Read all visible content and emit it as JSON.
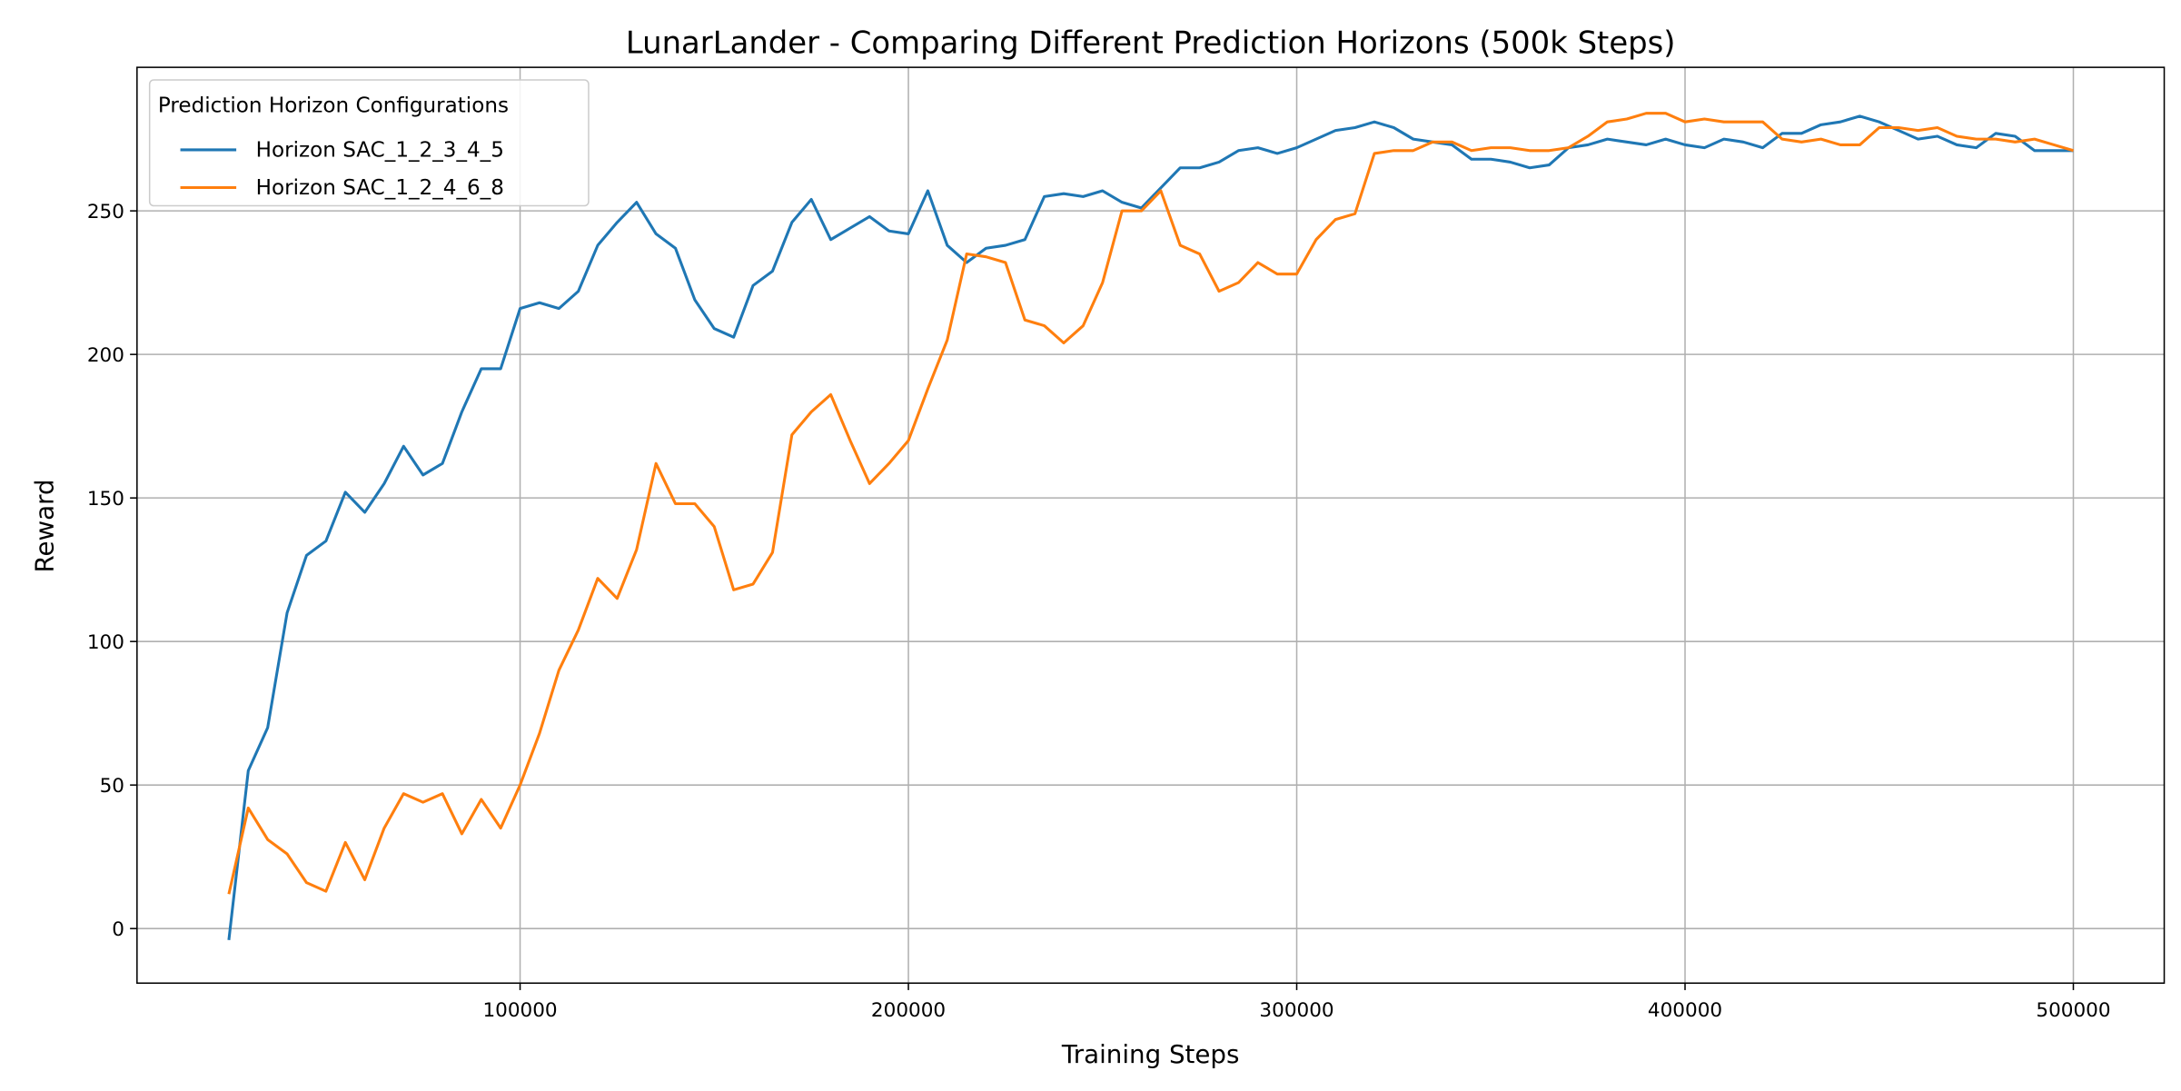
{
  "chart_data": {
    "type": "line",
    "title": "LunarLander - Comparing Different Prediction Horizons (500k Steps)",
    "x_label": "Training Steps",
    "y_label": "Reward",
    "legend_title": "Prediction Horizon Configurations",
    "legend_loc": "upper left",
    "grid": true,
    "xlim": [
      1350,
      523400
    ],
    "ylim": [
      -19,
      300
    ],
    "xticks": [
      100000,
      200000,
      300000,
      400000,
      500000
    ],
    "yticks": [
      0,
      50,
      100,
      150,
      200,
      250
    ],
    "x": [
      25000,
      30000,
      35000,
      40000,
      45000,
      50000,
      55000,
      60000,
      65000,
      70000,
      75000,
      80000,
      85000,
      90000,
      95000,
      100000,
      105000,
      110000,
      115000,
      120000,
      125000,
      130000,
      135000,
      140000,
      145000,
      150000,
      155000,
      160000,
      165000,
      170000,
      175000,
      180000,
      185000,
      190000,
      195000,
      200000,
      205000,
      210000,
      215000,
      220000,
      225000,
      230000,
      235000,
      240000,
      245000,
      250000,
      255000,
      260000,
      265000,
      270000,
      275000,
      280000,
      285000,
      290000,
      295000,
      300000,
      305000,
      310000,
      315000,
      320000,
      325000,
      330000,
      335000,
      340000,
      345000,
      350000,
      355000,
      360000,
      365000,
      370000,
      375000,
      380000,
      385000,
      390000,
      395000,
      400000,
      405000,
      410000,
      415000,
      420000,
      425000,
      430000,
      435000,
      440000,
      445000,
      450000,
      455000,
      460000,
      465000,
      470000,
      475000,
      480000,
      485000,
      490000,
      495000,
      500000
    ],
    "series": [
      {
        "name": "Horizon SAC_1_2_3_4_5",
        "color": "#1f77b4",
        "values": [
          -4,
          55,
          70,
          110,
          130,
          135,
          152,
          145,
          155,
          168,
          158,
          162,
          180,
          195,
          195,
          216,
          218,
          216,
          222,
          238,
          246,
          253,
          242,
          237,
          219,
          209,
          206,
          224,
          229,
          246,
          254,
          240,
          244,
          248,
          243,
          242,
          257,
          238,
          232,
          237,
          238,
          240,
          255,
          256,
          255,
          257,
          253,
          251,
          258,
          265,
          265,
          267,
          271,
          272,
          270,
          272,
          275,
          278,
          279,
          281,
          279,
          275,
          274,
          273,
          268,
          268,
          267,
          265,
          266,
          272,
          273,
          275,
          274,
          273,
          275,
          273,
          272,
          275,
          274,
          272,
          277,
          277,
          280,
          281,
          283,
          281,
          278,
          275,
          276,
          273,
          272,
          277,
          276,
          271,
          271,
          271
        ]
      },
      {
        "name": "Horizon SAC_1_2_4_6_8",
        "color": "#ff7f0e",
        "values": [
          12,
          42,
          31,
          26,
          16,
          13,
          30,
          17,
          35,
          47,
          44,
          47,
          33,
          45,
          35,
          50,
          68,
          90,
          104,
          122,
          115,
          132,
          162,
          148,
          148,
          140,
          118,
          120,
          131,
          172,
          180,
          186,
          170,
          155,
          162,
          170,
          188,
          205,
          235,
          234,
          232,
          212,
          210,
          204,
          210,
          225,
          250,
          250,
          257,
          238,
          235,
          222,
          225,
          232,
          228,
          228,
          240,
          247,
          249,
          270,
          271,
          271,
          274,
          274,
          271,
          272,
          272,
          271,
          271,
          272,
          276,
          281,
          282,
          284,
          284,
          281,
          282,
          281,
          281,
          281,
          275,
          274,
          275,
          273,
          273,
          279,
          279,
          278,
          279,
          276,
          275,
          275,
          274,
          275,
          273,
          271
        ]
      }
    ]
  }
}
